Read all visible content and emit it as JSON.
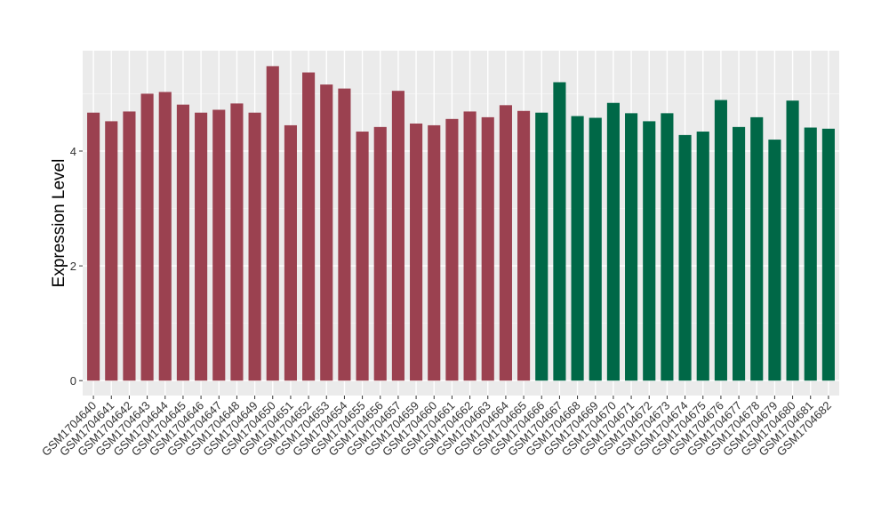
{
  "chart_data": {
    "type": "bar",
    "title": "",
    "xlabel": "",
    "ylabel": "Expression Level",
    "ylim": [
      -0.26,
      5.75
    ],
    "yticks": [
      0,
      2,
      4
    ],
    "grid": true,
    "legend": "none",
    "group_colors": [
      "#9B4150",
      "#006847"
    ],
    "categories": [
      "GSM1704640",
      "GSM1704641",
      "GSM1704642",
      "GSM1704643",
      "GSM1704644",
      "GSM1704645",
      "GSM1704646",
      "GSM1704647",
      "GSM1704648",
      "GSM1704649",
      "GSM1704650",
      "GSM1704651",
      "GSM1704652",
      "GSM1704653",
      "GSM1704654",
      "GSM1704655",
      "GSM1704656",
      "GSM1704657",
      "GSM1704659",
      "GSM1704660",
      "GSM1704661",
      "GSM1704662",
      "GSM1704663",
      "GSM1704664",
      "GSM1704665",
      "GSM1704666",
      "GSM1704667",
      "GSM1704668",
      "GSM1704669",
      "GSM1704670",
      "GSM1704671",
      "GSM1704672",
      "GSM1704673",
      "GSM1704674",
      "GSM1704675",
      "GSM1704676",
      "GSM1704677",
      "GSM1704678",
      "GSM1704679",
      "GSM1704680",
      "GSM1704681",
      "GSM1704682"
    ],
    "values": [
      4.67,
      4.52,
      4.69,
      5.0,
      5.03,
      4.81,
      4.67,
      4.72,
      4.83,
      4.67,
      5.48,
      4.45,
      5.37,
      5.16,
      5.09,
      4.34,
      4.42,
      5.05,
      4.48,
      4.45,
      4.56,
      4.69,
      4.59,
      4.8,
      4.7,
      4.67,
      5.2,
      4.61,
      4.58,
      4.84,
      4.66,
      4.52,
      4.66,
      4.28,
      4.34,
      4.89,
      4.42,
      4.59,
      4.2,
      4.88,
      4.41,
      4.39
    ],
    "groups": [
      0,
      0,
      0,
      0,
      0,
      0,
      0,
      0,
      0,
      0,
      0,
      0,
      0,
      0,
      0,
      0,
      0,
      0,
      0,
      0,
      0,
      0,
      0,
      0,
      0,
      1,
      1,
      1,
      1,
      1,
      1,
      1,
      1,
      1,
      1,
      1,
      1,
      1,
      1,
      1,
      1,
      1
    ]
  }
}
